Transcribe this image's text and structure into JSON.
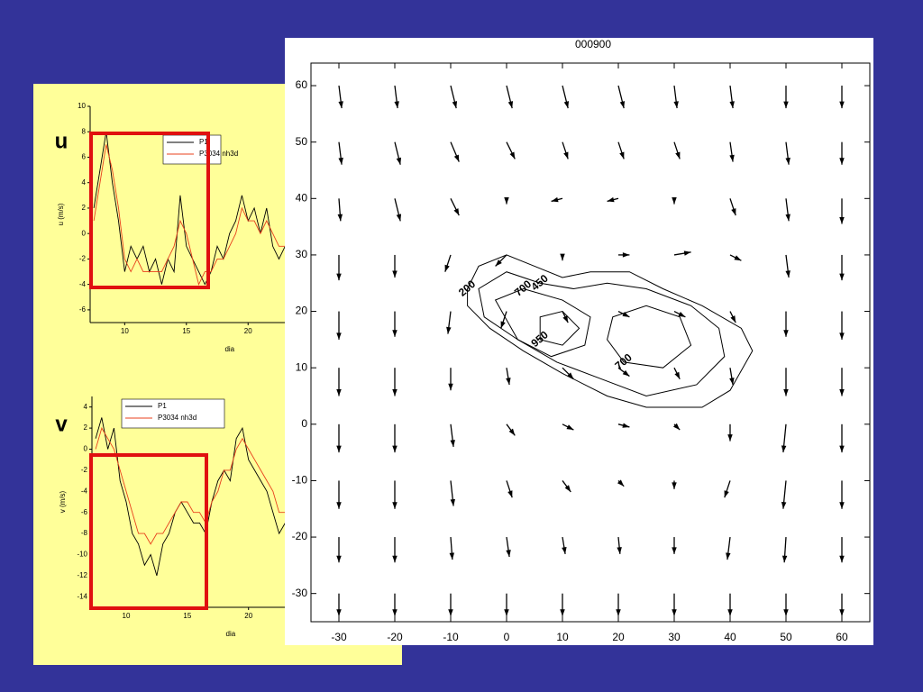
{
  "chart_data": [
    {
      "type": "line",
      "annotation": "u",
      "ylabel": "u (m/s)",
      "xlabel": "dia",
      "xlim": [
        7.2,
        24
      ],
      "xticks": [
        10,
        15,
        20
      ],
      "ylim": [
        -7,
        10
      ],
      "yticks": [
        -6,
        -4,
        -2,
        0,
        2,
        4,
        6,
        8,
        10
      ],
      "x": [
        7.5,
        8,
        8.5,
        9,
        9.5,
        10,
        10.5,
        11,
        11.5,
        12,
        12.5,
        13,
        13.5,
        14,
        14.5,
        15,
        15.5,
        16,
        16.5,
        17,
        17.5,
        18,
        18.5,
        19,
        19.5,
        20,
        20.5,
        21,
        21.5,
        22,
        22.5,
        23
      ],
      "series": [
        {
          "name": "P1",
          "color": "#000000",
          "values": [
            2,
            5,
            8,
            4,
            1,
            -3,
            -1,
            -2,
            -1,
            -3,
            -2,
            -4,
            -2,
            -3,
            3,
            -1,
            -2,
            -3,
            -4,
            -3,
            -1,
            -2,
            0,
            1,
            3,
            1,
            2,
            0,
            2,
            -1,
            -2,
            -1
          ]
        },
        {
          "name": "P3034 nh3d",
          "color": "#e8401c",
          "values": [
            1,
            4,
            7,
            5,
            2,
            -2,
            -3,
            -2,
            -3,
            -3,
            -3,
            -3,
            -2,
            -1,
            1,
            0,
            -2,
            -4,
            -3,
            -3,
            -2,
            -2,
            -1,
            0,
            2,
            1,
            1,
            0,
            1,
            0,
            -1,
            -1
          ]
        }
      ]
    },
    {
      "type": "line",
      "annotation": "v",
      "ylabel": "v (m/s)",
      "xlabel": "dia",
      "xlim": [
        7.2,
        24
      ],
      "xticks": [
        10,
        15,
        20
      ],
      "ylim": [
        -15,
        5
      ],
      "yticks": [
        -14,
        -12,
        -10,
        -8,
        -6,
        -4,
        -2,
        0,
        2,
        4
      ],
      "x": [
        7.5,
        8,
        8.5,
        9,
        9.5,
        10,
        10.5,
        11,
        11.5,
        12,
        12.5,
        13,
        13.5,
        14,
        14.5,
        15,
        15.5,
        16,
        16.5,
        17,
        17.5,
        18,
        18.5,
        19,
        19.5,
        20,
        20.5,
        21,
        21.5,
        22,
        22.5,
        23
      ],
      "series": [
        {
          "name": "P1",
          "color": "#000000",
          "values": [
            1,
            3,
            0,
            2,
            -3,
            -5,
            -8,
            -9,
            -11,
            -10,
            -12,
            -9,
            -8,
            -6,
            -5,
            -6,
            -7,
            -7,
            -8,
            -5,
            -3,
            -2,
            -3,
            1,
            2,
            -1,
            -2,
            -3,
            -4,
            -6,
            -8,
            -7
          ]
        },
        {
          "name": "P3034 nh3d",
          "color": "#e8401c",
          "values": [
            0,
            2,
            1,
            0,
            -2,
            -4,
            -6,
            -8,
            -8,
            -9,
            -8,
            -8,
            -7,
            -6,
            -5,
            -5,
            -6,
            -6,
            -7,
            -5,
            -4,
            -2,
            -2,
            0,
            1,
            0,
            -1,
            -2,
            -3,
            -4,
            -6,
            -6
          ]
        }
      ]
    },
    {
      "type": "quiver",
      "title": "000900",
      "xlim": [
        -35,
        65
      ],
      "xticks": [
        -30,
        -20,
        -10,
        0,
        10,
        20,
        30,
        40,
        50,
        60
      ],
      "ylim": [
        -35,
        64
      ],
      "yticks": [
        -30,
        -20,
        -10,
        0,
        10,
        20,
        30,
        40,
        50,
        60
      ],
      "vector_x": [
        -30,
        -20,
        -10,
        0,
        10,
        20,
        30,
        40,
        50,
        60
      ],
      "vector_y": [
        60,
        50,
        40,
        30,
        20,
        10,
        0,
        -10,
        -20,
        -30
      ],
      "u": [
        [
          0.5,
          0.5,
          1,
          1,
          1,
          1,
          0.5,
          0.5,
          0,
          0
        ],
        [
          0.5,
          1,
          1.5,
          1.5,
          1,
          1,
          1,
          0.5,
          0.5,
          0
        ],
        [
          0.3,
          1,
          1.5,
          0,
          -2,
          -2,
          0,
          1,
          0.5,
          0
        ],
        [
          0,
          0,
          -1,
          -2,
          0,
          2,
          3,
          2,
          0.5,
          0
        ],
        [
          0,
          0,
          -0.5,
          -1,
          1,
          2,
          2,
          1,
          0,
          0
        ],
        [
          0,
          0,
          0,
          0.5,
          2,
          2,
          1,
          0.5,
          0,
          0
        ],
        [
          0,
          0,
          0.5,
          1.5,
          2,
          2,
          1,
          0,
          -0.5,
          0
        ],
        [
          0,
          0,
          0.5,
          1,
          1.5,
          1,
          0,
          -1,
          -0.5,
          0
        ],
        [
          0,
          0,
          0.3,
          0.5,
          0.5,
          0.3,
          0,
          -0.5,
          -0.3,
          0
        ],
        [
          0,
          0,
          0,
          0,
          0,
          0,
          0,
          0,
          0,
          0
        ]
      ],
      "v": [
        [
          -4,
          -4,
          -4,
          -4,
          -4,
          -4,
          -4,
          -4,
          -4,
          -4
        ],
        [
          -4,
          -4,
          -3.5,
          -3,
          -3,
          -3,
          -3,
          -3.5,
          -4,
          -4
        ],
        [
          -4,
          -4,
          -3,
          -1,
          -0.5,
          -0.5,
          -1,
          -3,
          -4,
          -4.5
        ],
        [
          -4.5,
          -4,
          -3,
          -2,
          -1,
          0,
          0.5,
          -1,
          -4,
          -4.5
        ],
        [
          -5,
          -4.5,
          -4,
          -3,
          -2,
          -1,
          -1,
          -2,
          -4.5,
          -5
        ],
        [
          -5,
          -5,
          -4,
          -3,
          -2,
          -1.5,
          -2,
          -3,
          -5,
          -5
        ],
        [
          -5,
          -5,
          -4,
          -2,
          -1,
          -0.5,
          -1,
          -3,
          -5,
          -5
        ],
        [
          -5,
          -5,
          -4.5,
          -3,
          -2,
          -1,
          -1.5,
          -3,
          -5,
          -5
        ],
        [
          -4.5,
          -4.5,
          -4,
          -3.5,
          -3,
          -3,
          -3,
          -4,
          -4.5,
          -4.5
        ],
        [
          -4,
          -4,
          -4,
          -4,
          -4,
          -4,
          -4,
          -4,
          -4,
          -4
        ]
      ],
      "contours": [
        {
          "level": 200,
          "x": [
            -7,
            -5,
            0,
            5,
            10,
            15,
            22,
            28,
            35,
            42,
            44,
            40,
            35,
            25,
            18,
            10,
            3,
            -3,
            -7
          ],
          "y": [
            24,
            28,
            30,
            28,
            26,
            27,
            27,
            24,
            21,
            17,
            13,
            6,
            3,
            3,
            5,
            9,
            13,
            17,
            21
          ]
        },
        {
          "level": 450,
          "x": [
            6,
            12,
            18,
            25,
            33,
            38,
            39,
            34,
            25,
            17,
            9,
            2,
            -4,
            -5,
            0
          ],
          "y": [
            25,
            24,
            25,
            24,
            21,
            17,
            12,
            7,
            5,
            8,
            11,
            15,
            19,
            24,
            27
          ]
        },
        {
          "level": 700,
          "x": [
            3,
            10,
            15,
            14,
            8,
            2,
            -2
          ],
          "y": [
            24,
            22,
            19,
            14,
            12,
            15,
            22
          ]
        },
        {
          "level": 700,
          "x": [
            21,
            18,
            19,
            25,
            31,
            33,
            28
          ],
          "y": [
            11,
            15,
            19,
            21,
            19,
            14,
            10
          ]
        },
        {
          "level": 950,
          "x": [
            6,
            6,
            10,
            13,
            10
          ],
          "y": [
            15,
            19,
            20,
            17,
            14
          ]
        }
      ]
    }
  ]
}
